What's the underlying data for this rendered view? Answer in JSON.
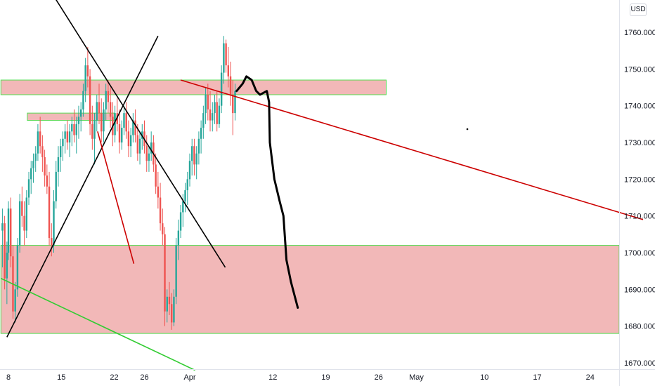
{
  "currency": "USD",
  "chart_data": {
    "type": "candlestick",
    "price_axis": {
      "ticks": [
        "1760.000",
        "1750.000",
        "1740.000",
        "1730.000",
        "1720.000",
        "1710.000",
        "1700.000",
        "1690.000",
        "1680.000",
        "1670.000"
      ],
      "ylim": [
        1668,
        1767
      ],
      "position": "right"
    },
    "time_axis": {
      "ticks": [
        {
          "label": "8",
          "day": 0
        },
        {
          "label": "15",
          "day": 7
        },
        {
          "label": "22",
          "day": 14
        },
        {
          "label": "26",
          "day": 18
        },
        {
          "label": "Apr",
          "day": 24
        },
        {
          "label": "12",
          "day": 35
        },
        {
          "label": "19",
          "day": 42
        },
        {
          "label": "26",
          "day": 49
        },
        {
          "label": "May",
          "day": 54
        },
        {
          "label": "10",
          "day": 63
        },
        {
          "label": "17",
          "day": 70
        },
        {
          "label": "24",
          "day": 77
        }
      ]
    },
    "candles": [
      [
        -0.8,
        1706,
        1712,
        1696,
        1708
      ],
      [
        -0.5,
        1708,
        1710,
        1690,
        1693
      ],
      [
        -0.2,
        1693,
        1703,
        1686,
        1700
      ],
      [
        0.0,
        1700,
        1714,
        1698,
        1712
      ],
      [
        0.3,
        1712,
        1715,
        1696,
        1699
      ],
      [
        0.6,
        1699,
        1702,
        1682,
        1684
      ],
      [
        0.9,
        1684,
        1692,
        1681,
        1690
      ],
      [
        1.2,
        1690,
        1704,
        1688,
        1702
      ],
      [
        1.5,
        1702,
        1716,
        1700,
        1714
      ],
      [
        1.8,
        1714,
        1718,
        1707,
        1710
      ],
      [
        2.1,
        1710,
        1714,
        1702,
        1706
      ],
      [
        2.4,
        1706,
        1717,
        1704,
        1715
      ],
      [
        2.7,
        1715,
        1722,
        1713,
        1720
      ],
      [
        3.0,
        1720,
        1725,
        1716,
        1723
      ],
      [
        3.3,
        1723,
        1727,
        1719,
        1725
      ],
      [
        3.6,
        1725,
        1729,
        1722,
        1727
      ],
      [
        3.9,
        1727,
        1735,
        1725,
        1733
      ],
      [
        4.2,
        1733,
        1737,
        1727,
        1729
      ],
      [
        4.5,
        1729,
        1732,
        1722,
        1726
      ],
      [
        4.8,
        1726,
        1728,
        1718,
        1721
      ],
      [
        5.1,
        1721,
        1724,
        1716,
        1718
      ],
      [
        5.4,
        1718,
        1722,
        1702,
        1704
      ],
      [
        5.7,
        1704,
        1708,
        1699,
        1702
      ],
      [
        6.0,
        1702,
        1717,
        1700,
        1714
      ],
      [
        6.3,
        1714,
        1725,
        1712,
        1722
      ],
      [
        6.6,
        1722,
        1729,
        1718,
        1726
      ],
      [
        6.9,
        1726,
        1731,
        1722,
        1729
      ],
      [
        7.2,
        1729,
        1733,
        1725,
        1731
      ],
      [
        7.5,
        1731,
        1735,
        1727,
        1733
      ],
      [
        7.8,
        1733,
        1736,
        1728,
        1730
      ],
      [
        8.1,
        1730,
        1735,
        1726,
        1733
      ],
      [
        8.4,
        1733,
        1737,
        1729,
        1735
      ],
      [
        8.7,
        1735,
        1739,
        1730,
        1732
      ],
      [
        9.0,
        1732,
        1737,
        1727,
        1735
      ],
      [
        9.3,
        1735,
        1740,
        1731,
        1737
      ],
      [
        9.6,
        1737,
        1741,
        1733,
        1739
      ],
      [
        9.9,
        1739,
        1746,
        1737,
        1744
      ],
      [
        10.2,
        1744,
        1753,
        1741,
        1751
      ],
      [
        10.5,
        1751,
        1756,
        1745,
        1748
      ],
      [
        10.8,
        1748,
        1750,
        1732,
        1735
      ],
      [
        11.1,
        1735,
        1740,
        1728,
        1731
      ],
      [
        11.4,
        1731,
        1738,
        1724,
        1736
      ],
      [
        11.7,
        1736,
        1743,
        1733,
        1741
      ],
      [
        12.0,
        1741,
        1746,
        1735,
        1738
      ],
      [
        12.3,
        1738,
        1742,
        1730,
        1733
      ],
      [
        12.6,
        1733,
        1741,
        1730,
        1739
      ],
      [
        12.9,
        1739,
        1746,
        1736,
        1744
      ],
      [
        13.2,
        1744,
        1747,
        1738,
        1741
      ],
      [
        13.5,
        1741,
        1745,
        1734,
        1737
      ],
      [
        13.8,
        1737,
        1741,
        1729,
        1732
      ],
      [
        14.1,
        1732,
        1740,
        1730,
        1738
      ],
      [
        14.4,
        1738,
        1742,
        1733,
        1735
      ],
      [
        14.7,
        1735,
        1739,
        1727,
        1730
      ],
      [
        15.0,
        1730,
        1736,
        1728,
        1734
      ],
      [
        15.3,
        1734,
        1740,
        1732,
        1738
      ],
      [
        15.6,
        1738,
        1741,
        1731,
        1733
      ],
      [
        15.9,
        1733,
        1736,
        1726,
        1729
      ],
      [
        16.2,
        1729,
        1734,
        1726,
        1732
      ],
      [
        16.5,
        1732,
        1738,
        1730,
        1736
      ],
      [
        16.8,
        1736,
        1739,
        1730,
        1732
      ],
      [
        17.1,
        1732,
        1735,
        1725,
        1727
      ],
      [
        17.4,
        1727,
        1733,
        1724,
        1731
      ],
      [
        17.7,
        1731,
        1735,
        1728,
        1733
      ],
      [
        18.0,
        1733,
        1736,
        1727,
        1729
      ],
      [
        18.3,
        1729,
        1732,
        1722,
        1725
      ],
      [
        18.6,
        1725,
        1729,
        1722,
        1727
      ],
      [
        18.9,
        1727,
        1733,
        1725,
        1730
      ],
      [
        19.2,
        1730,
        1732,
        1722,
        1724
      ],
      [
        19.5,
        1724,
        1727,
        1716,
        1718
      ],
      [
        19.8,
        1718,
        1722,
        1712,
        1715
      ],
      [
        20.1,
        1715,
        1719,
        1706,
        1708
      ],
      [
        20.4,
        1708,
        1712,
        1702,
        1705
      ],
      [
        20.7,
        1705,
        1707,
        1680,
        1684
      ],
      [
        21.0,
        1684,
        1690,
        1681,
        1688
      ],
      [
        21.3,
        1688,
        1692,
        1683,
        1686
      ],
      [
        21.6,
        1686,
        1689,
        1679,
        1681
      ],
      [
        21.9,
        1681,
        1690,
        1680,
        1688
      ],
      [
        22.2,
        1688,
        1704,
        1686,
        1702
      ],
      [
        22.5,
        1702,
        1709,
        1698,
        1706
      ],
      [
        22.8,
        1706,
        1713,
        1704,
        1711
      ],
      [
        23.1,
        1711,
        1716,
        1707,
        1714
      ],
      [
        23.4,
        1714,
        1719,
        1711,
        1717
      ],
      [
        23.7,
        1717,
        1722,
        1713,
        1720
      ],
      [
        24.0,
        1720,
        1727,
        1718,
        1725
      ],
      [
        24.3,
        1725,
        1731,
        1721,
        1729
      ],
      [
        24.6,
        1729,
        1731,
        1721,
        1724
      ],
      [
        24.9,
        1724,
        1729,
        1720,
        1727
      ],
      [
        25.2,
        1727,
        1733,
        1724,
        1731
      ],
      [
        25.5,
        1731,
        1736,
        1727,
        1734
      ],
      [
        25.8,
        1734,
        1740,
        1731,
        1738
      ],
      [
        26.1,
        1738,
        1745,
        1735,
        1743
      ],
      [
        26.4,
        1743,
        1746,
        1736,
        1739
      ],
      [
        26.7,
        1739,
        1744,
        1733,
        1736
      ],
      [
        27.0,
        1736,
        1741,
        1733,
        1738
      ],
      [
        27.3,
        1738,
        1743,
        1735,
        1741
      ],
      [
        27.6,
        1741,
        1744,
        1733,
        1735
      ],
      [
        27.9,
        1735,
        1742,
        1734,
        1740
      ],
      [
        28.2,
        1740,
        1751,
        1738,
        1749
      ],
      [
        28.5,
        1749,
        1759,
        1746,
        1757
      ],
      [
        28.8,
        1757,
        1758,
        1749,
        1751
      ],
      [
        29.1,
        1751,
        1756,
        1745,
        1748
      ],
      [
        29.4,
        1748,
        1752,
        1740,
        1743
      ],
      [
        29.7,
        1743,
        1747,
        1732,
        1738
      ],
      [
        30.0,
        1738,
        1746,
        1736,
        1744
      ]
    ],
    "zones": [
      {
        "name": "upper-resistance",
        "y": [
          1743,
          1747
        ],
        "x": [
          -1,
          50
        ]
      },
      {
        "name": "middle-zone",
        "y": [
          1736,
          1738
        ],
        "x": [
          2.5,
          14
        ]
      },
      {
        "name": "lower-support",
        "y": [
          1678,
          1702
        ],
        "x": [
          -1,
          84
        ]
      }
    ],
    "trendlines": [
      {
        "name": "black-descending",
        "color": "#000000",
        "from": [
          3.5,
          1778
        ],
        "to": [
          28.7,
          1696
        ]
      },
      {
        "name": "black-ascending",
        "color": "#000000",
        "from": [
          -0.2,
          1677
        ],
        "to": [
          19.8,
          1759
        ]
      },
      {
        "name": "red-short",
        "color": "#cc0000",
        "from": [
          11.8,
          1733
        ],
        "to": [
          16.6,
          1697
        ]
      },
      {
        "name": "red-long",
        "color": "#cc0000",
        "from": [
          22.8,
          1747
        ],
        "to": [
          84,
          1709
        ]
      },
      {
        "name": "green",
        "color": "#33cc33",
        "from": [
          -1,
          1693
        ],
        "to": [
          24.7,
          1668
        ]
      }
    ],
    "projection": [
      [
        30.2,
        1744
      ],
      [
        31.0,
        1746
      ],
      [
        31.5,
        1748
      ],
      [
        32.2,
        1747
      ],
      [
        32.8,
        1744
      ],
      [
        33.3,
        1743
      ],
      [
        34.2,
        1744
      ],
      [
        34.5,
        1741
      ],
      [
        34.6,
        1730
      ],
      [
        35.2,
        1720
      ],
      [
        35.9,
        1714
      ],
      [
        36.4,
        1710
      ],
      [
        36.8,
        1698
      ],
      [
        37.4,
        1692
      ],
      [
        38.3,
        1685
      ]
    ]
  }
}
